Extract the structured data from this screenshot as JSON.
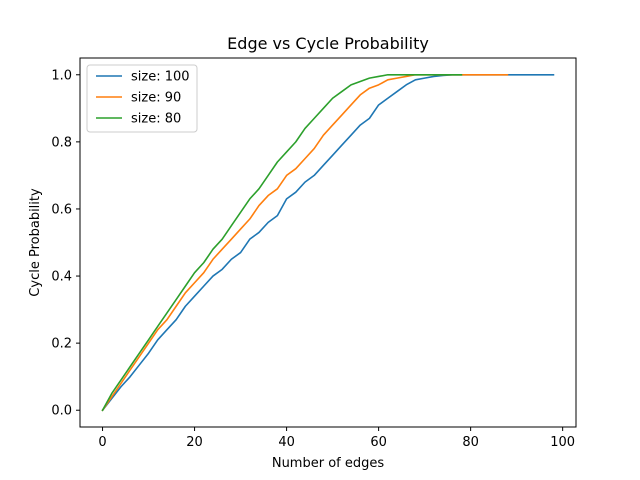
{
  "chart_data": {
    "type": "line",
    "title": "Edge vs Cycle Probability",
    "xlabel": "Number of edges",
    "ylabel": "Cycle Probability",
    "xlim": [
      -4.9,
      102.9
    ],
    "ylim": [
      -0.05,
      1.05
    ],
    "xticks": [
      0,
      20,
      40,
      60,
      80,
      100
    ],
    "yticks": [
      0.0,
      0.2,
      0.4,
      0.6,
      0.8,
      1.0
    ],
    "xtick_labels": [
      "0",
      "20",
      "40",
      "60",
      "80",
      "100"
    ],
    "ytick_labels": [
      "0.0",
      "0.2",
      "0.4",
      "0.6",
      "0.8",
      "1.0"
    ],
    "grid": false,
    "legend_position": "top-left",
    "colors": [
      "#1f77b4",
      "#ff7f0e",
      "#2ca02c"
    ],
    "series": [
      {
        "name": "size: 100",
        "x": [
          0,
          2,
          4,
          6,
          8,
          10,
          12,
          14,
          16,
          18,
          20,
          22,
          24,
          26,
          28,
          30,
          32,
          34,
          36,
          38,
          40,
          42,
          44,
          46,
          48,
          50,
          52,
          54,
          56,
          58,
          60,
          62,
          64,
          66,
          68,
          70,
          72,
          74,
          76,
          78,
          80,
          85,
          90,
          98
        ],
        "y": [
          0.0,
          0.035,
          0.07,
          0.1,
          0.135,
          0.17,
          0.21,
          0.24,
          0.27,
          0.31,
          0.34,
          0.37,
          0.4,
          0.42,
          0.45,
          0.47,
          0.51,
          0.53,
          0.56,
          0.58,
          0.63,
          0.65,
          0.68,
          0.7,
          0.73,
          0.76,
          0.79,
          0.82,
          0.85,
          0.87,
          0.91,
          0.93,
          0.95,
          0.97,
          0.985,
          0.99,
          0.995,
          0.998,
          1.0,
          1.0,
          1.0,
          1.0,
          1.0,
          1.0
        ]
      },
      {
        "name": "size: 90",
        "x": [
          0,
          2,
          4,
          6,
          8,
          10,
          12,
          14,
          16,
          18,
          20,
          22,
          24,
          26,
          28,
          30,
          32,
          34,
          36,
          38,
          40,
          42,
          44,
          46,
          48,
          50,
          52,
          54,
          56,
          58,
          60,
          62,
          64,
          66,
          68,
          70,
          72,
          74,
          76,
          78,
          80,
          88
        ],
        "y": [
          0.0,
          0.04,
          0.08,
          0.12,
          0.16,
          0.2,
          0.24,
          0.27,
          0.31,
          0.35,
          0.38,
          0.41,
          0.45,
          0.48,
          0.51,
          0.54,
          0.57,
          0.61,
          0.64,
          0.66,
          0.7,
          0.72,
          0.75,
          0.78,
          0.82,
          0.85,
          0.88,
          0.91,
          0.94,
          0.96,
          0.97,
          0.985,
          0.99,
          0.995,
          1.0,
          1.0,
          1.0,
          1.0,
          1.0,
          1.0,
          1.0,
          1.0
        ]
      },
      {
        "name": "size: 80",
        "x": [
          0,
          2,
          4,
          6,
          8,
          10,
          12,
          14,
          16,
          18,
          20,
          22,
          24,
          26,
          28,
          30,
          32,
          34,
          36,
          38,
          40,
          42,
          44,
          46,
          48,
          50,
          52,
          54,
          56,
          58,
          60,
          62,
          64,
          66,
          68,
          70,
          72,
          74,
          76,
          78
        ],
        "y": [
          0.0,
          0.05,
          0.09,
          0.13,
          0.17,
          0.21,
          0.25,
          0.29,
          0.33,
          0.37,
          0.41,
          0.44,
          0.48,
          0.51,
          0.55,
          0.59,
          0.63,
          0.66,
          0.7,
          0.74,
          0.77,
          0.8,
          0.84,
          0.87,
          0.9,
          0.93,
          0.95,
          0.97,
          0.98,
          0.99,
          0.995,
          1.0,
          1.0,
          1.0,
          1.0,
          1.0,
          1.0,
          1.0,
          1.0,
          1.0
        ]
      }
    ]
  }
}
